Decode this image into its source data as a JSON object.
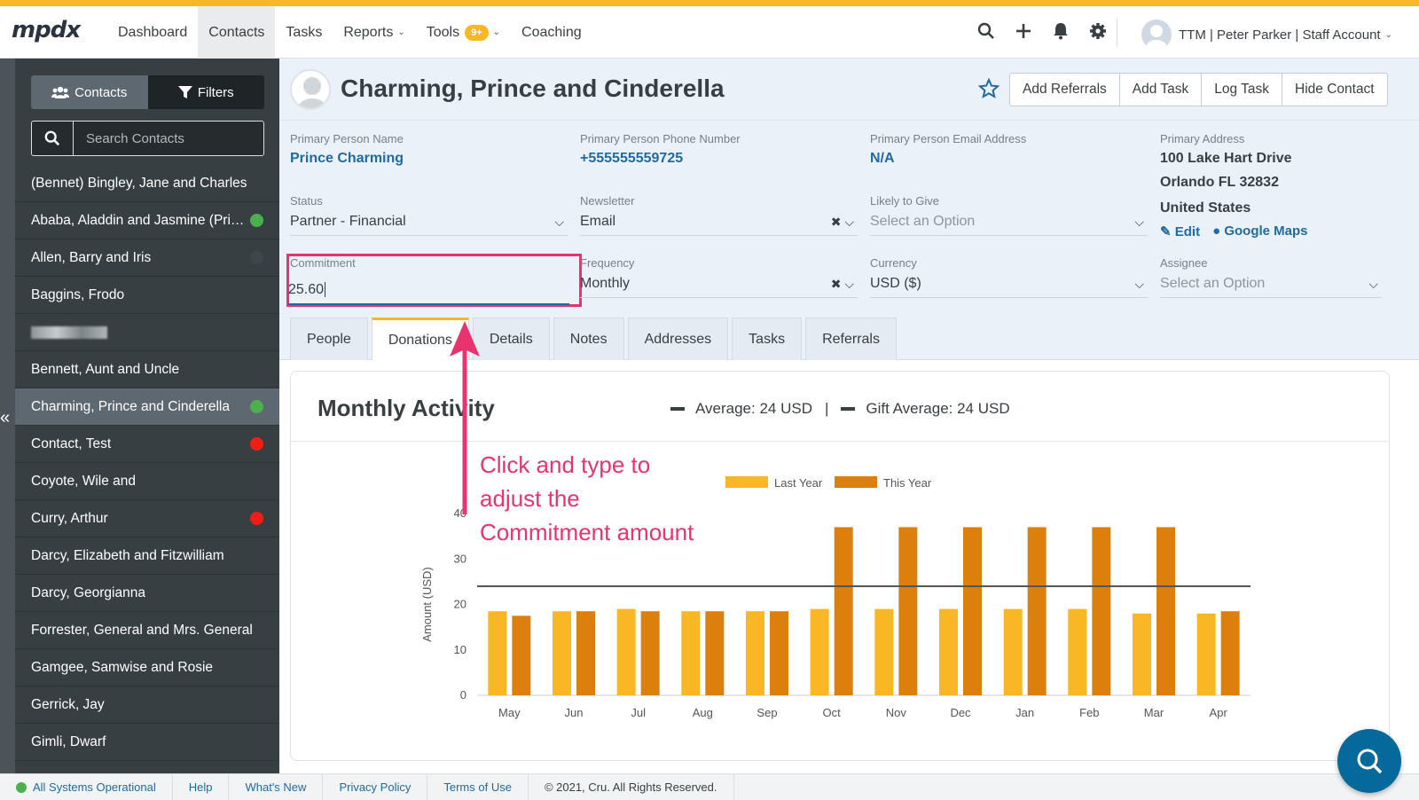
{
  "app": {
    "logo": "mpdx"
  },
  "nav": {
    "items": [
      {
        "label": "Dashboard"
      },
      {
        "label": "Contacts"
      },
      {
        "label": "Tasks"
      },
      {
        "label": "Reports"
      },
      {
        "label": "Tools"
      },
      {
        "label": "Coaching"
      }
    ],
    "tools_badge": "9+",
    "account_label": "TTM | Peter Parker | Staff Account"
  },
  "sidebar": {
    "contacts_tab": "Contacts",
    "filters_tab": "Filters",
    "search_placeholder": "Search Contacts",
    "contacts": [
      {
        "name": "(Bennet) Bingley, Jane and Charles",
        "status": ""
      },
      {
        "name": "Ababa, Aladdin and Jasmine (Pri…",
        "status": "green"
      },
      {
        "name": "Allen, Barry and Iris",
        "status": "gray"
      },
      {
        "name": "Baggins, Frodo",
        "status": ""
      },
      {
        "name": "",
        "status": "",
        "blurred": true
      },
      {
        "name": "Bennett, Aunt and Uncle",
        "status": ""
      },
      {
        "name": "Charming, Prince and Cinderella",
        "status": "green",
        "selected": true
      },
      {
        "name": "Contact, Test",
        "status": "red"
      },
      {
        "name": "Coyote, Wile and",
        "status": ""
      },
      {
        "name": "Curry, Arthur",
        "status": "red"
      },
      {
        "name": "Darcy, Elizabeth and Fitzwilliam",
        "status": ""
      },
      {
        "name": "Darcy, Georgianna",
        "status": ""
      },
      {
        "name": "Forrester, General and Mrs. General",
        "status": ""
      },
      {
        "name": "Gamgee, Samwise and Rosie",
        "status": ""
      },
      {
        "name": "Gerrick, Jay",
        "status": ""
      },
      {
        "name": "Gimli, Dwarf",
        "status": ""
      }
    ]
  },
  "contact": {
    "title": "Charming, Prince and Cinderella",
    "actions": [
      "Add Referrals",
      "Add Task",
      "Log Task",
      "Hide Contact"
    ],
    "primary_person_name_label": "Primary Person Name",
    "primary_person_name": "Prince Charming",
    "phone_label": "Primary Person Phone Number",
    "phone": "+555555559725",
    "email_label": "Primary Person Email Address",
    "email": "N/A",
    "address_label": "Primary Address",
    "address_line1": "100 Lake Hart Drive",
    "address_line2": "Orlando FL 32832",
    "address_country": "United States",
    "edit_link": "Edit",
    "maps_link": "Google Maps",
    "status_label": "Status",
    "status_value": "Partner - Financial",
    "newsletter_label": "Newsletter",
    "newsletter_value": "Email",
    "likely_label": "Likely to Give",
    "likely_placeholder": "Select an Option",
    "commitment_label": "Commitment",
    "commitment_value": "25.60",
    "frequency_label": "Frequency",
    "frequency_value": "Monthly",
    "currency_label": "Currency",
    "currency_value": "USD ($)",
    "assignee_label": "Assignee",
    "assignee_placeholder": "Select an Option"
  },
  "tabs": [
    {
      "label": "People"
    },
    {
      "label": "Donations",
      "active": true
    },
    {
      "label": "Details"
    },
    {
      "label": "Notes"
    },
    {
      "label": "Addresses"
    },
    {
      "label": "Tasks"
    },
    {
      "label": "Referrals"
    }
  ],
  "activity": {
    "title": "Monthly Activity",
    "average": "Average: 24 USD",
    "separator": "|",
    "gift_average": "Gift Average: 24 USD"
  },
  "annotation": {
    "line1": "Click and type to",
    "line2": "adjust the",
    "line3": "Commitment amount",
    "color": "#e8336f"
  },
  "chart_data": {
    "type": "bar",
    "categories": [
      "May",
      "Jun",
      "Jul",
      "Aug",
      "Sep",
      "Oct",
      "Nov",
      "Dec",
      "Jan",
      "Feb",
      "Mar",
      "Apr"
    ],
    "series": [
      {
        "name": "Last Year",
        "color": "#f9b625",
        "values": [
          18.5,
          18.5,
          19,
          18.5,
          18.5,
          19,
          19,
          19,
          19,
          19,
          18,
          18
        ]
      },
      {
        "name": "This Year",
        "color": "#dd7f0d",
        "values": [
          17.5,
          18.5,
          18.5,
          18.5,
          18.5,
          37,
          37,
          37,
          37,
          37,
          37,
          18.5
        ]
      }
    ],
    "average_line": 24,
    "ylabel": "Amount (USD)",
    "ylim": [
      0,
      40
    ],
    "yticks": [
      0,
      10,
      20,
      30,
      40
    ],
    "grid": false,
    "legend_position": "top-center"
  },
  "footer": {
    "status": "All Systems Operational",
    "links": [
      "Help",
      "What's New",
      "Privacy Policy",
      "Terms of Use"
    ],
    "copyright": "© 2021, Cru. All Rights Reserved."
  }
}
